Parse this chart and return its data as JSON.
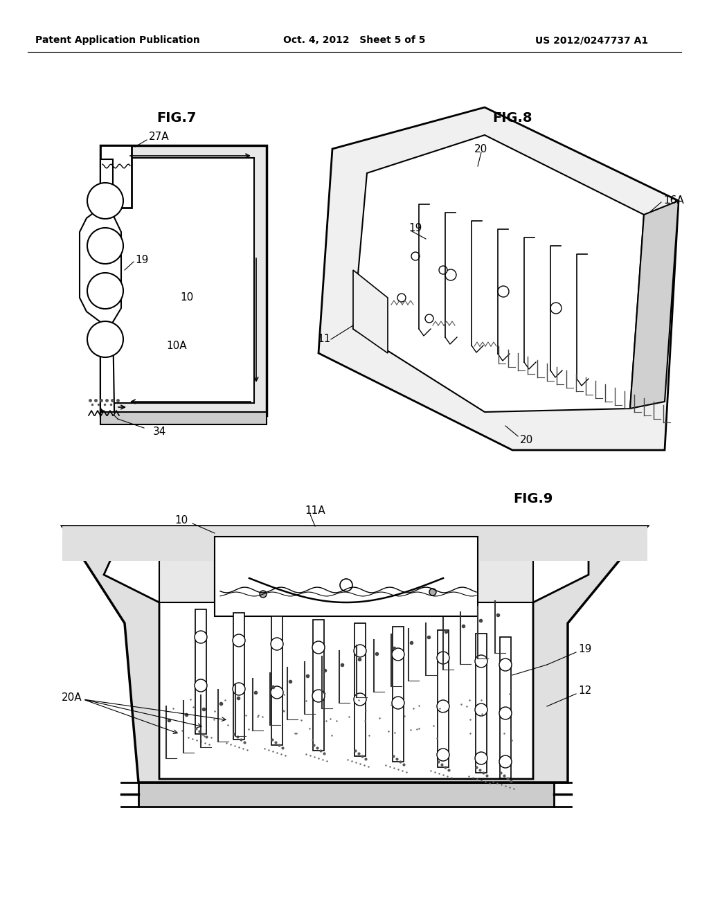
{
  "bg_color": "#ffffff",
  "header_left": "Patent Application Publication",
  "header_center": "Oct. 4, 2012   Sheet 5 of 5",
  "header_right": "US 2012/0247737 A1",
  "fig7_label": "FIG.7",
  "fig8_label": "FIG.8",
  "fig9_label": "FIG.9",
  "label_27A": "27A",
  "label_19_fig7": "19",
  "label_10_fig7": "10",
  "label_10A": "10A",
  "label_34": "34",
  "label_11_fig8": "11",
  "label_16A": "16A",
  "label_19_fig8": "19",
  "label_20_top": "20",
  "label_20_bot": "20",
  "label_10_fig9": "10",
  "label_11A": "11A",
  "label_19_fig9": "19",
  "label_12": "12",
  "label_20A": "20A",
  "line_color": "#000000",
  "line_width": 1.5,
  "label_fontsize": 11,
  "header_fontsize": 10,
  "fig_label_fontsize": 14
}
